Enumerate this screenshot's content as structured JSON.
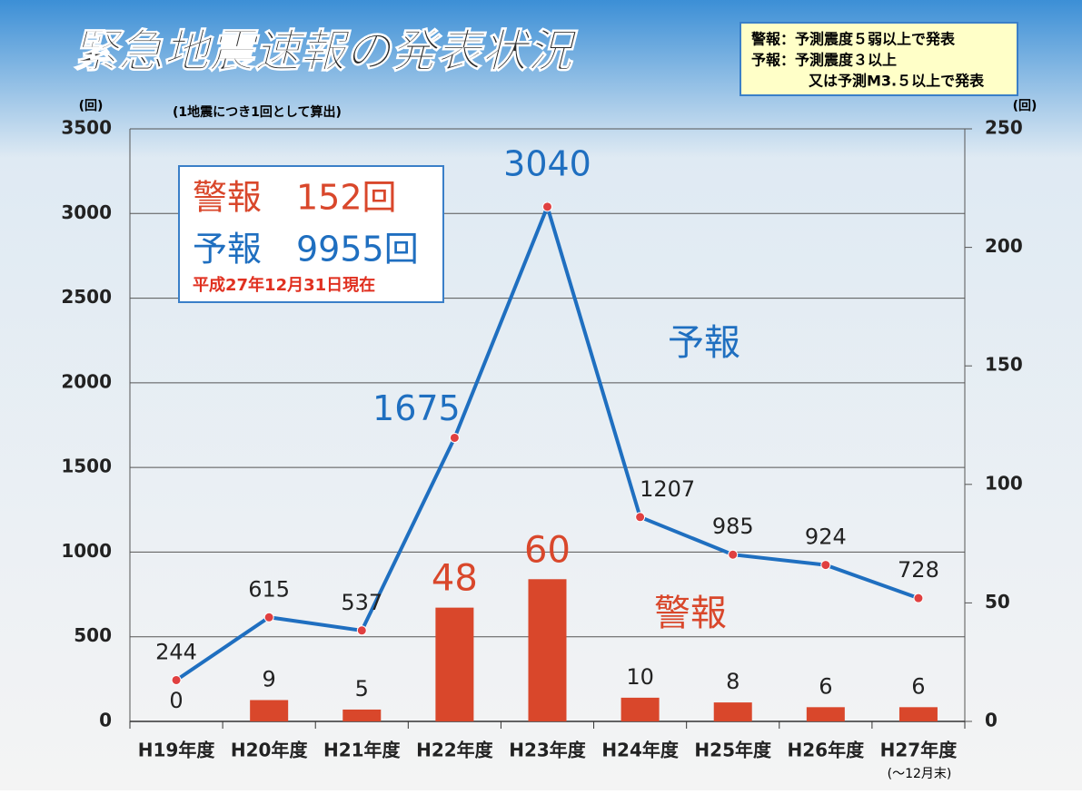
{
  "chart_data": {
    "type": "bar_line",
    "title": "緊急地震速報の発表状況",
    "notes": [
      "警報：予測震度５弱以上で発表",
      "予報：予測震度３以上",
      "又は予測M3.５以上で発表"
    ],
    "subtitle": "(1地震につき1回として算出)",
    "y_unit": "(回)",
    "y2_unit": "(回)",
    "summary": [
      "警報　152回",
      "予報　9955回",
      "平成27年12月31日現在"
    ],
    "categories": [
      "H19年度",
      "H20年度",
      "H21年度",
      "H22年度",
      "H23年度",
      "H24年度",
      "H25年度",
      "H26年度",
      "H27年度"
    ],
    "category_note": "(～12月末)",
    "series": [
      {
        "name": "予報",
        "color": "#1f6fc0",
        "axis": "y",
        "values": [
          244,
          615,
          537,
          1675,
          3040,
          1207,
          985,
          924,
          728
        ]
      },
      {
        "name": "警報",
        "color": "#d9472b",
        "axis": "y2",
        "values": [
          0,
          9,
          5,
          48,
          60,
          10,
          8,
          6,
          6
        ]
      }
    ],
    "ylim": [
      0,
      3500
    ],
    "yticks": [
      0,
      500,
      1000,
      1500,
      2000,
      2500,
      3000,
      3500
    ],
    "y2lim": [
      0,
      250
    ],
    "y2ticks": [
      0,
      50,
      100,
      150,
      200,
      250
    ],
    "grid": true
  }
}
